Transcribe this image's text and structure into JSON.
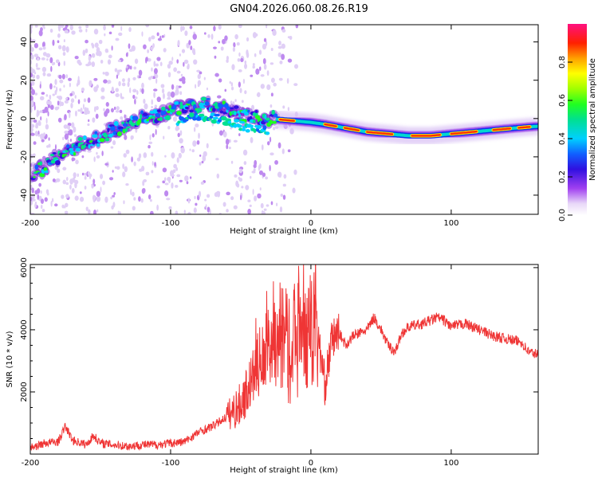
{
  "figure_title": "GN04.2026.060.08.26.R19",
  "colors": {
    "snr_line": "#ef3535",
    "axis": "#000000"
  },
  "chart_data": [
    {
      "type": "heatmap",
      "xlabel": "Height of straight line (km)",
      "ylabel": "Frequency (Hz)",
      "xlim": [
        -200,
        162
      ],
      "ylim": [
        -50,
        49
      ],
      "x_ticks": [
        -200,
        -100,
        0,
        100
      ],
      "y_ticks": [
        -40,
        -20,
        0,
        20,
        40
      ],
      "colorbar": {
        "label": "Normalized spectral amplitude",
        "range": [
          0,
          1
        ],
        "ticks": [
          "0.0",
          "0.2",
          "0.4",
          "0.6",
          "0.8"
        ]
      },
      "ridge": {
        "description": "dominant frequency track",
        "x": [
          -195,
          -180,
          -165,
          -150,
          -135,
          -120,
          -105,
          -90,
          -75,
          -60,
          -45,
          -30,
          -15,
          0,
          10,
          25,
          40,
          55,
          70,
          85,
          100,
          115,
          130,
          145,
          162
        ],
        "y": [
          -28,
          -20,
          -14,
          -10,
          -4,
          0,
          3,
          6,
          7,
          5,
          1,
          0,
          -1,
          -2,
          -3,
          -5,
          -7,
          -8,
          -9,
          -9,
          -8,
          -7,
          -6,
          -5,
          -4
        ]
      }
    },
    {
      "type": "line",
      "xlabel": "Height of straight line (km)",
      "ylabel": "SNR (10 * v/v)",
      "xlim": [
        -200,
        162
      ],
      "ylim": [
        0,
        6100
      ],
      "x_ticks": [
        -200,
        -100,
        0,
        100
      ],
      "y_ticks": [
        2000,
        4000,
        6000
      ],
      "series": [
        {
          "name": "SNR",
          "x": [
            -200,
            -190,
            -180,
            -175,
            -170,
            -160,
            -155,
            -150,
            -140,
            -130,
            -120,
            -110,
            -100,
            -90,
            -80,
            -70,
            -60,
            -50,
            -45,
            -40,
            -35,
            -30,
            -25,
            -20,
            -15,
            -10,
            -5,
            0,
            5,
            10,
            15,
            20,
            25,
            30,
            40,
            45,
            50,
            55,
            60,
            65,
            70,
            80,
            90,
            95,
            100,
            110,
            120,
            130,
            140,
            150,
            155,
            162
          ],
          "values": [
            200,
            350,
            400,
            900,
            450,
            300,
            600,
            350,
            300,
            250,
            300,
            300,
            350,
            400,
            700,
            900,
            1200,
            1600,
            2100,
            2600,
            3000,
            3400,
            3300,
            3200,
            3000,
            3300,
            3700,
            3900,
            3800,
            2200,
            3700,
            3900,
            3500,
            3800,
            4000,
            4400,
            4000,
            3500,
            3300,
            3900,
            4100,
            4200,
            4400,
            4300,
            4100,
            4200,
            4000,
            3800,
            3700,
            3600,
            3300,
            3200
          ]
        }
      ]
    }
  ]
}
